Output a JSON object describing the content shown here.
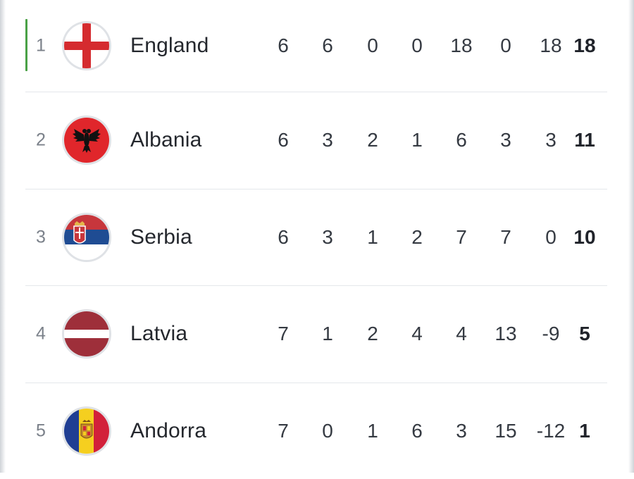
{
  "standings": {
    "qualifier_color": "#4aa146",
    "rows": [
      {
        "position": "1",
        "team": "England",
        "flag": "england-flag",
        "played": "6",
        "won": "6",
        "drawn": "0",
        "lost": "0",
        "goals_for": "18",
        "goals_against": "0",
        "goal_diff": "18",
        "points": "18",
        "qualified": true
      },
      {
        "position": "2",
        "team": "Albania",
        "flag": "albania-flag",
        "played": "6",
        "won": "3",
        "drawn": "2",
        "lost": "1",
        "goals_for": "6",
        "goals_against": "3",
        "goal_diff": "3",
        "points": "11",
        "qualified": false
      },
      {
        "position": "3",
        "team": "Serbia",
        "flag": "serbia-flag",
        "played": "6",
        "won": "3",
        "drawn": "1",
        "lost": "2",
        "goals_for": "7",
        "goals_against": "7",
        "goal_diff": "0",
        "points": "10",
        "qualified": false
      },
      {
        "position": "4",
        "team": "Latvia",
        "flag": "latvia-flag",
        "played": "7",
        "won": "1",
        "drawn": "2",
        "lost": "4",
        "goals_for": "4",
        "goals_against": "13",
        "goal_diff": "-9",
        "points": "5",
        "qualified": false
      },
      {
        "position": "5",
        "team": "Andorra",
        "flag": "andorra-flag",
        "played": "7",
        "won": "0",
        "drawn": "1",
        "lost": "6",
        "goals_for": "3",
        "goals_against": "15",
        "goal_diff": "-12",
        "points": "1",
        "qualified": false
      }
    ]
  }
}
